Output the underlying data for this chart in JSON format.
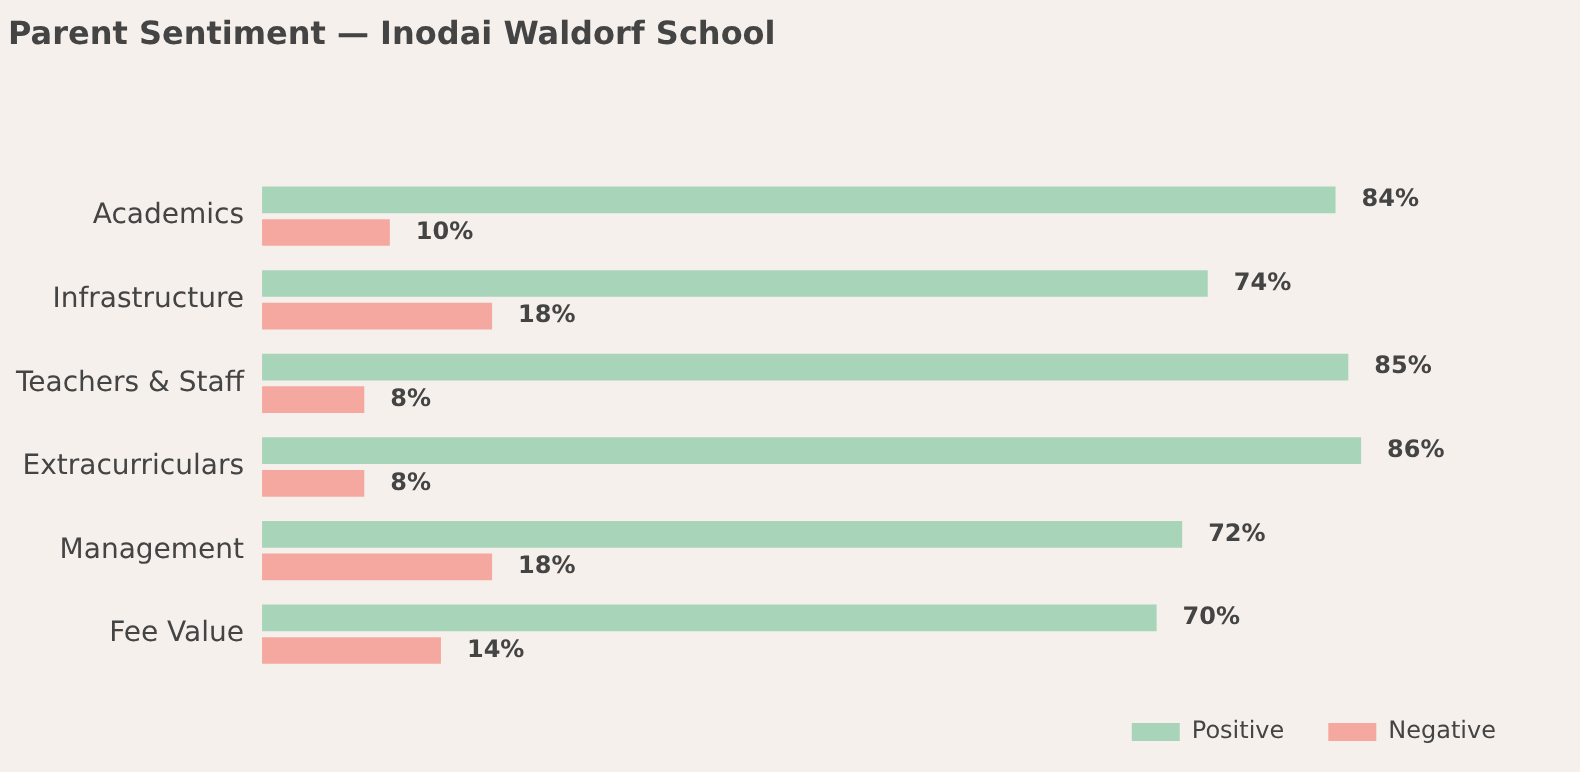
{
  "chart_data": {
    "type": "bar",
    "orientation": "horizontal",
    "title": "Parent Sentiment — Inodai Waldorf School",
    "categories": [
      "Academics",
      "Infrastructure",
      "Teachers & Staff",
      "Extracurriculars",
      "Management",
      "Fee Value"
    ],
    "series": [
      {
        "name": "Positive",
        "color": "#a8d5ba",
        "values": [
          84,
          74,
          85,
          86,
          72,
          70
        ],
        "value_labels": [
          "84%",
          "74%",
          "85%",
          "86%",
          "72%",
          "70%"
        ]
      },
      {
        "name": "Negative",
        "color": "#f4a8a0",
        "values": [
          10,
          18,
          8,
          8,
          18,
          14
        ],
        "value_labels": [
          "10%",
          "18%",
          "8%",
          "8%",
          "18%",
          "14%"
        ]
      }
    ],
    "legend": "bottom right",
    "grid": false,
    "tick_labels": "y"
  }
}
